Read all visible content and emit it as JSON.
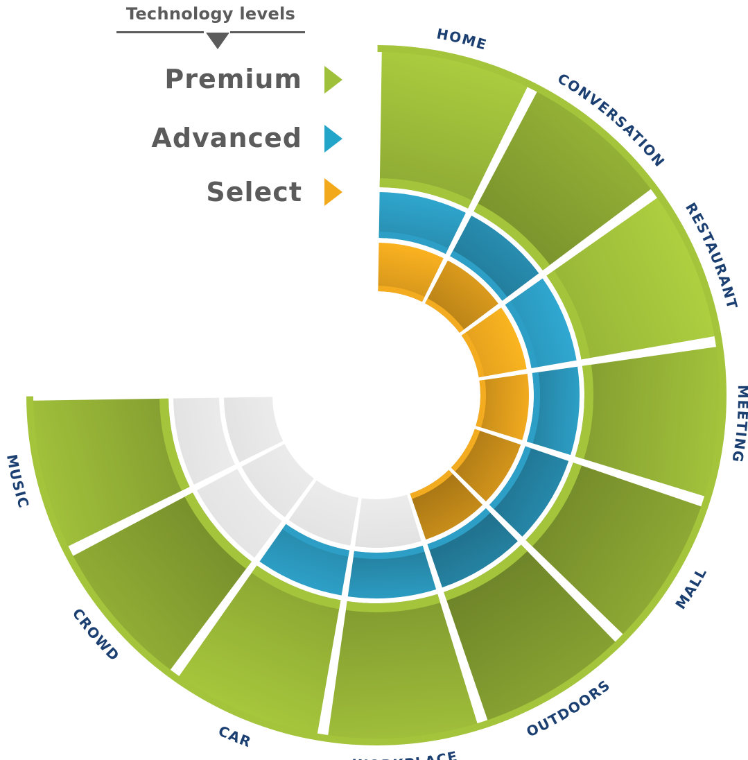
{
  "legend": {
    "title": "Technology levels",
    "levels": [
      {
        "label": "Premium",
        "color": "#9fc03a"
      },
      {
        "label": "Advanced",
        "color": "#23a5c9"
      },
      {
        "label": "Select",
        "color": "#f2aa1c"
      }
    ]
  },
  "wheel": {
    "outer_color": "#a4c43c",
    "middle_color": "#2d9fc6",
    "inner_color": "#f3ab1f",
    "faded_color": "#e6e6e6",
    "segments": [
      {
        "name": "home",
        "label": "HOME",
        "premium": true,
        "advanced": true,
        "select": true
      },
      {
        "name": "conversation",
        "label": "CONVERSATION",
        "premium": true,
        "advanced": true,
        "select": true
      },
      {
        "name": "restaurant",
        "label": "RESTAURANT",
        "premium": true,
        "advanced": true,
        "select": true
      },
      {
        "name": "meeting",
        "label": "MEETING",
        "premium": true,
        "advanced": true,
        "select": true
      },
      {
        "name": "mall",
        "label": "MALL",
        "premium": true,
        "advanced": true,
        "select": true
      },
      {
        "name": "outdoors",
        "label": "OUTDOORS",
        "premium": true,
        "advanced": true,
        "select": true
      },
      {
        "name": "workplace",
        "label": "WORKPLACE",
        "premium": true,
        "advanced": true,
        "select": false
      },
      {
        "name": "car",
        "label": "CAR",
        "premium": true,
        "advanced": true,
        "select": false
      },
      {
        "name": "crowd",
        "label": "CROWD",
        "premium": true,
        "advanced": false,
        "select": false
      },
      {
        "name": "music",
        "label": "MUSIC",
        "premium": true,
        "advanced": false,
        "select": false
      }
    ]
  }
}
